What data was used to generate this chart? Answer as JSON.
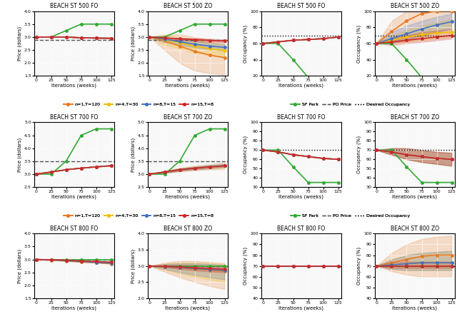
{
  "scenarios": [
    "500",
    "700",
    "800"
  ],
  "x": [
    0,
    25,
    50,
    75,
    100,
    125
  ],
  "price_data": {
    "500": {
      "fo": {
        "sfpark": [
          3.0,
          3.0,
          3.25,
          3.5,
          3.5,
          3.5
        ],
        "po": 2.9,
        "n1": [
          3.0,
          3.0,
          3.0,
          2.97,
          2.96,
          2.95
        ],
        "n4": [
          3.0,
          3.0,
          3.0,
          2.97,
          2.96,
          2.95
        ],
        "n8": [
          3.0,
          3.0,
          3.0,
          2.97,
          2.96,
          2.95
        ],
        "n15": [
          3.0,
          3.0,
          3.0,
          2.97,
          2.96,
          2.95
        ],
        "n1_lo": [
          3.0,
          3.0,
          3.0,
          2.97,
          2.96,
          2.95
        ],
        "n1_hi": [
          3.0,
          3.0,
          3.0,
          2.97,
          2.96,
          2.95
        ],
        "ylim": [
          1.5,
          4.0
        ],
        "yticks": [
          1.5,
          2.0,
          2.5,
          3.0,
          3.5,
          4.0
        ]
      },
      "zo": {
        "sfpark": [
          3.0,
          3.0,
          3.25,
          3.5,
          3.5,
          3.5
        ],
        "po": 2.9,
        "n1": [
          3.0,
          2.85,
          2.65,
          2.45,
          2.3,
          2.2
        ],
        "n4": [
          3.0,
          2.9,
          2.78,
          2.65,
          2.55,
          2.48
        ],
        "n8": [
          3.0,
          2.92,
          2.82,
          2.72,
          2.65,
          2.6
        ],
        "n15": [
          3.0,
          2.97,
          2.93,
          2.9,
          2.87,
          2.85
        ],
        "n1_lo": [
          3.0,
          2.5,
          2.0,
          1.7,
          1.6,
          1.55
        ],
        "n1_hi": [
          3.0,
          3.1,
          3.1,
          3.0,
          2.9,
          2.8
        ],
        "n4_lo": [
          3.0,
          2.7,
          2.55,
          2.4,
          2.3,
          2.25
        ],
        "n4_hi": [
          3.0,
          3.05,
          3.0,
          2.9,
          2.8,
          2.7
        ],
        "n8_lo": [
          3.0,
          2.8,
          2.7,
          2.6,
          2.52,
          2.48
        ],
        "n8_hi": [
          3.0,
          3.02,
          2.95,
          2.85,
          2.78,
          2.72
        ],
        "n15_lo": [
          3.0,
          2.93,
          2.88,
          2.84,
          2.82,
          2.8
        ],
        "n15_hi": [
          3.0,
          3.01,
          2.98,
          2.96,
          2.93,
          2.9
        ],
        "ylim": [
          1.5,
          4.0
        ],
        "yticks": [
          1.5,
          2.0,
          2.5,
          3.0,
          3.5,
          4.0
        ]
      }
    },
    "700": {
      "fo": {
        "sfpark": [
          3.0,
          3.0,
          3.5,
          4.5,
          4.75,
          4.75
        ],
        "po": 3.5,
        "n1": [
          3.0,
          3.08,
          3.17,
          3.23,
          3.28,
          3.32
        ],
        "n4": [
          3.0,
          3.08,
          3.17,
          3.23,
          3.28,
          3.32
        ],
        "n8": [
          3.0,
          3.08,
          3.17,
          3.23,
          3.28,
          3.33
        ],
        "n15": [
          3.0,
          3.08,
          3.17,
          3.23,
          3.28,
          3.32
        ],
        "ylim": [
          2.5,
          5.0
        ],
        "yticks": [
          2.5,
          3.0,
          3.5,
          4.0,
          4.5,
          5.0
        ]
      },
      "zo": {
        "sfpark": [
          3.0,
          3.0,
          3.5,
          4.5,
          4.75,
          4.75
        ],
        "po": 3.5,
        "n1": [
          3.0,
          3.08,
          3.17,
          3.23,
          3.28,
          3.32
        ],
        "n4": [
          3.0,
          3.08,
          3.17,
          3.23,
          3.28,
          3.32
        ],
        "n8": [
          3.0,
          3.08,
          3.17,
          3.23,
          3.28,
          3.33
        ],
        "n15": [
          3.0,
          3.08,
          3.17,
          3.23,
          3.28,
          3.32
        ],
        "n1_lo": [
          3.0,
          3.04,
          3.1,
          3.15,
          3.18,
          3.2
        ],
        "n1_hi": [
          3.0,
          3.12,
          3.24,
          3.32,
          3.38,
          3.45
        ],
        "n4_lo": [
          3.0,
          3.05,
          3.12,
          3.18,
          3.22,
          3.26
        ],
        "n4_hi": [
          3.0,
          3.11,
          3.22,
          3.29,
          3.34,
          3.38
        ],
        "n8_lo": [
          3.0,
          3.05,
          3.12,
          3.18,
          3.22,
          3.27
        ],
        "n8_hi": [
          3.0,
          3.11,
          3.22,
          3.29,
          3.35,
          3.4
        ],
        "n15_lo": [
          3.0,
          3.06,
          3.14,
          3.2,
          3.25,
          3.29
        ],
        "n15_hi": [
          3.0,
          3.1,
          3.2,
          3.26,
          3.31,
          3.35
        ],
        "ylim": [
          2.5,
          5.0
        ],
        "yticks": [
          2.5,
          3.0,
          3.5,
          4.0,
          4.5,
          5.0
        ]
      }
    },
    "800": {
      "fo": {
        "sfpark": [
          3.0,
          3.0,
          3.0,
          3.0,
          3.0,
          3.0
        ],
        "po": 3.0,
        "n1": [
          3.0,
          2.97,
          2.94,
          2.9,
          2.87,
          2.83
        ],
        "n4": [
          3.0,
          2.98,
          2.95,
          2.92,
          2.89,
          2.86
        ],
        "n8": [
          3.0,
          2.98,
          2.95,
          2.92,
          2.89,
          2.86
        ],
        "n15": [
          3.0,
          2.99,
          2.97,
          2.94,
          2.92,
          2.9
        ],
        "ylim": [
          1.5,
          4.0
        ],
        "yticks": [
          1.5,
          2.0,
          2.5,
          3.0,
          3.5,
          4.0
        ]
      },
      "zo": {
        "sfpark": [
          3.0,
          3.0,
          3.0,
          3.0,
          3.0,
          3.0
        ],
        "po": 3.0,
        "n1": [
          3.0,
          2.97,
          2.94,
          2.9,
          2.87,
          2.83
        ],
        "n4": [
          3.0,
          2.98,
          2.95,
          2.92,
          2.89,
          2.86
        ],
        "n8": [
          3.0,
          2.98,
          2.95,
          2.92,
          2.89,
          2.86
        ],
        "n15": [
          3.0,
          2.99,
          2.97,
          2.94,
          2.92,
          2.9
        ],
        "n1_lo": [
          3.0,
          2.82,
          2.65,
          2.5,
          2.38,
          2.28
        ],
        "n1_hi": [
          3.0,
          3.1,
          3.15,
          3.15,
          3.12,
          3.08
        ],
        "n4_lo": [
          3.0,
          2.88,
          2.77,
          2.67,
          2.58,
          2.5
        ],
        "n4_hi": [
          3.0,
          3.07,
          3.1,
          3.1,
          3.08,
          3.05
        ],
        "n8_lo": [
          3.0,
          2.9,
          2.8,
          2.72,
          2.65,
          2.58
        ],
        "n8_hi": [
          3.0,
          3.06,
          3.08,
          3.08,
          3.06,
          3.03
        ],
        "n15_lo": [
          3.0,
          2.95,
          2.9,
          2.86,
          2.83,
          2.8
        ],
        "n15_hi": [
          3.0,
          3.03,
          3.04,
          3.03,
          3.01,
          2.99
        ],
        "ylim": [
          2.0,
          4.0
        ],
        "yticks": [
          2.0,
          2.5,
          3.0,
          3.5,
          4.0
        ]
      }
    }
  },
  "occ_data": {
    "500": {
      "fo": {
        "sfpark": [
          60,
          60,
          40,
          18,
          18,
          18
        ],
        "desired": 70,
        "n1": [
          60,
          62,
          64,
          65,
          66,
          68
        ],
        "n4": [
          60,
          62,
          64,
          65,
          66,
          68
        ],
        "n8": [
          60,
          62,
          64,
          65,
          66,
          68
        ],
        "n15": [
          60,
          62,
          64,
          65,
          66,
          68
        ],
        "ylim": [
          20,
          100
        ],
        "yticks": [
          20,
          40,
          60,
          80,
          100
        ]
      },
      "zo": {
        "sfpark": [
          60,
          60,
          40,
          18,
          18,
          18
        ],
        "desired": 70,
        "n1": [
          60,
          75,
          88,
          97,
          100,
          100
        ],
        "n4": [
          60,
          64,
          68,
          71,
          73,
          74
        ],
        "n8": [
          60,
          66,
          72,
          78,
          83,
          87
        ],
        "n15": [
          60,
          62,
          64,
          66,
          68,
          70
        ],
        "n1_lo": [
          60,
          60,
          62,
          68,
          75,
          80
        ],
        "n1_hi": [
          60,
          88,
          100,
          100,
          100,
          100
        ],
        "n4_lo": [
          60,
          60,
          62,
          64,
          66,
          68
        ],
        "n4_hi": [
          60,
          70,
          76,
          82,
          86,
          90
        ],
        "n8_lo": [
          60,
          60,
          65,
          70,
          74,
          78
        ],
        "n8_hi": [
          60,
          74,
          82,
          88,
          93,
          97
        ],
        "n15_lo": [
          60,
          58,
          60,
          62,
          64,
          66
        ],
        "n15_hi": [
          60,
          66,
          70,
          74,
          76,
          78
        ],
        "ylim": [
          20,
          100
        ],
        "yticks": [
          20,
          40,
          60,
          80,
          100
        ]
      }
    },
    "700": {
      "fo": {
        "sfpark": [
          70,
          70,
          52,
          35,
          35,
          35
        ],
        "desired": 70,
        "n1": [
          70,
          68,
          65,
          63,
          61,
          60
        ],
        "n4": [
          70,
          68,
          65,
          63,
          61,
          60
        ],
        "n8": [
          70,
          68,
          65,
          63,
          61,
          60
        ],
        "n15": [
          70,
          68,
          65,
          63,
          61,
          60
        ],
        "ylim": [
          30,
          100
        ],
        "yticks": [
          30,
          40,
          50,
          60,
          70,
          80,
          90,
          100
        ]
      },
      "zo": {
        "sfpark": [
          70,
          70,
          52,
          35,
          35,
          35
        ],
        "desired": 70,
        "n1": [
          70,
          68,
          65,
          63,
          61,
          60
        ],
        "n4": [
          70,
          68,
          65,
          63,
          61,
          60
        ],
        "n8": [
          70,
          68,
          65,
          63,
          61,
          60
        ],
        "n15": [
          70,
          68,
          65,
          63,
          61,
          60
        ],
        "n1_lo": [
          70,
          65,
          60,
          57,
          55,
          53
        ],
        "n1_hi": [
          70,
          72,
          72,
          70,
          68,
          67
        ],
        "n4_lo": [
          70,
          65,
          60,
          57,
          55,
          53
        ],
        "n4_hi": [
          70,
          72,
          72,
          70,
          68,
          67
        ],
        "n8_lo": [
          70,
          65,
          60,
          57,
          55,
          53
        ],
        "n8_hi": [
          70,
          72,
          72,
          70,
          68,
          67
        ],
        "n15_lo": [
          70,
          65,
          60,
          57,
          55,
          53
        ],
        "n15_hi": [
          70,
          72,
          72,
          70,
          68,
          67
        ],
        "ylim": [
          30,
          100
        ],
        "yticks": [
          30,
          40,
          50,
          60,
          70,
          80,
          90,
          100
        ]
      }
    },
    "800": {
      "fo": {
        "sfpark": [
          70,
          70,
          70,
          70,
          70,
          70
        ],
        "desired": 70,
        "n1": [
          70,
          70,
          70,
          70,
          70,
          70
        ],
        "n4": [
          70,
          70,
          70,
          70,
          70,
          70
        ],
        "n8": [
          70,
          70,
          70,
          70,
          70,
          70
        ],
        "n15": [
          70,
          70,
          70,
          70,
          70,
          70
        ],
        "ylim": [
          40,
          100
        ],
        "yticks": [
          40,
          50,
          60,
          70,
          80,
          90,
          100
        ]
      },
      "zo": {
        "sfpark": [
          70,
          70,
          70,
          70,
          70,
          70
        ],
        "desired": 70,
        "n1": [
          70,
          73,
          76,
          79,
          80,
          80
        ],
        "n4": [
          70,
          71,
          72,
          73,
          73,
          73
        ],
        "n8": [
          70,
          71,
          72,
          73,
          73,
          73
        ],
        "n15": [
          70,
          70,
          70,
          70,
          70,
          70
        ],
        "n1_lo": [
          70,
          65,
          62,
          60,
          60,
          60
        ],
        "n1_hi": [
          70,
          82,
          90,
          95,
          97,
          98
        ],
        "n4_lo": [
          70,
          67,
          66,
          66,
          66,
          66
        ],
        "n4_hi": [
          70,
          76,
          80,
          82,
          83,
          84
        ],
        "n8_lo": [
          70,
          67,
          66,
          66,
          66,
          66
        ],
        "n8_hi": [
          70,
          76,
          80,
          82,
          83,
          84
        ],
        "n15_lo": [
          70,
          68,
          68,
          68,
          68,
          68
        ],
        "n15_hi": [
          70,
          73,
          74,
          74,
          74,
          74
        ],
        "ylim": [
          40,
          100
        ],
        "yticks": [
          40,
          50,
          60,
          70,
          80,
          90,
          100
        ]
      }
    }
  },
  "colors": {
    "n1": "#E87820",
    "n4": "#F0BE00",
    "n8": "#4472C4",
    "n15": "#CC2929",
    "sfpark": "#33AA33",
    "po": "#555555",
    "desired": "#111111"
  },
  "lw": 1.2,
  "ms": 2.5
}
